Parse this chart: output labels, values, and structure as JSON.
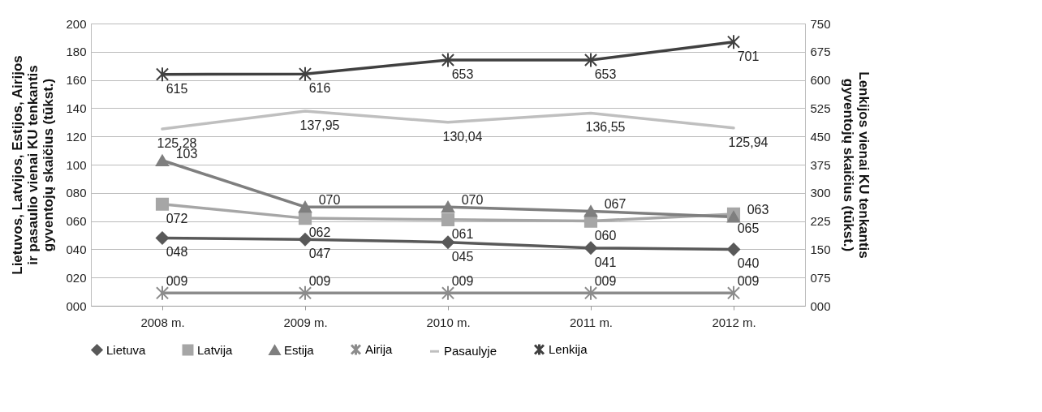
{
  "chart_data": {
    "type": "line",
    "categories": [
      "2008 m.",
      "2009 m.",
      "2010 m.",
      "2011 m.",
      "2012 m."
    ],
    "ylabel": "Lietuvos, Latvijos, Estijos, Airijos ir pasaulio vienai KU tenkantis gyventojų skaičius (tūkst.)",
    "y2label": "Lenkijos vienai KU tenkantis gyventojų skaičius (tūkst.)",
    "ylim": [
      0,
      200
    ],
    "yticks": [
      {
        "value": 0,
        "label": "000"
      },
      {
        "value": 20,
        "label": "020"
      },
      {
        "value": 40,
        "label": "040"
      },
      {
        "value": 60,
        "label": "060"
      },
      {
        "value": 80,
        "label": "080"
      },
      100,
      120,
      140,
      160,
      180,
      200
    ],
    "y2lim": [
      0,
      750
    ],
    "y2ticks": [
      {
        "value": 0,
        "label": "000"
      },
      {
        "value": 75,
        "label": "075"
      },
      150,
      225,
      300,
      375,
      450,
      525,
      600,
      675,
      750
    ],
    "grid": "y",
    "legend": "bottom",
    "series": [
      {
        "name": "Lietuva",
        "color": "#595959",
        "marker": "diamond",
        "values": [
          48,
          47,
          45,
          41,
          40
        ],
        "value_labels": [
          "048",
          "047",
          "045",
          "041",
          "040"
        ]
      },
      {
        "name": "Latvija",
        "color": "#a6a6a6",
        "marker": "square",
        "values": [
          72,
          62,
          61,
          60,
          65
        ],
        "value_labels": [
          "072",
          "062",
          "061",
          "060",
          "065"
        ]
      },
      {
        "name": "Estija",
        "color": "#7f7f7f",
        "marker": "triangle",
        "values": [
          103,
          70,
          70,
          67,
          63
        ],
        "value_labels": [
          "103",
          "070",
          "070",
          "067",
          "063"
        ]
      },
      {
        "name": "Airija",
        "color": "#8c8c8c",
        "marker": "cross",
        "values": [
          9,
          9,
          9,
          9,
          9
        ],
        "value_labels": [
          "009",
          "009",
          "009",
          "009",
          "009"
        ]
      },
      {
        "name": "Pasaulyje",
        "color": "#bfbfbf",
        "marker": "none",
        "values": [
          125.28,
          137.95,
          130.04,
          136.55,
          125.94
        ],
        "value_labels": [
          "125,28",
          "137,95",
          "130,04",
          "136,55",
          "125,94"
        ]
      },
      {
        "name": "Lenkija",
        "color": "#404040",
        "marker": "cross",
        "axis": "y2",
        "values": [
          615,
          616,
          653,
          653,
          701
        ],
        "value_labels": [
          "615",
          "616",
          "653",
          "653",
          "701"
        ]
      }
    ]
  }
}
